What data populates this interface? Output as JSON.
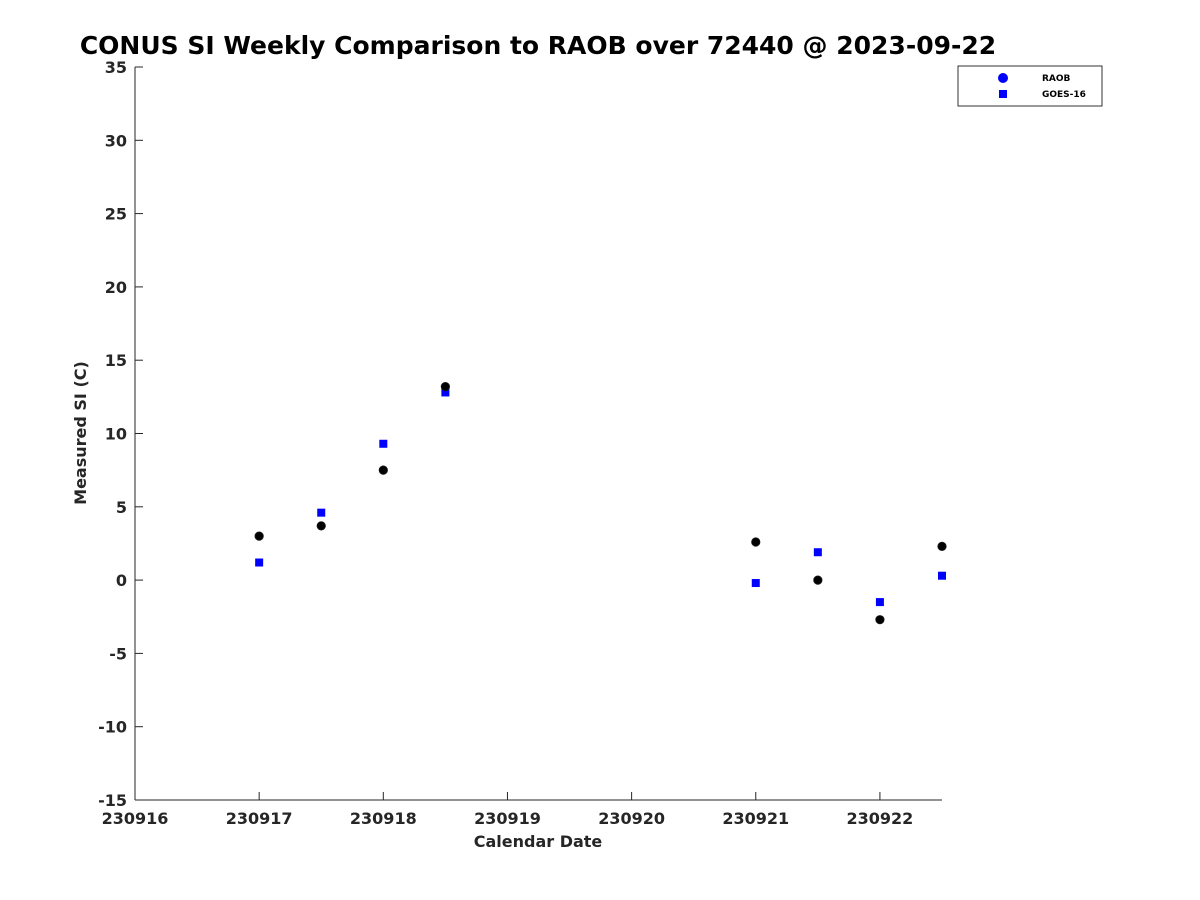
{
  "chart_data": {
    "type": "scatter",
    "title": "CONUS SI Weekly Comparison to RAOB over 72440 @ 2023-09-22",
    "xlabel": "Calendar Date",
    "ylabel": "Measured SI (C)",
    "xlim": [
      230916,
      230922.5
    ],
    "ylim": [
      -15,
      35
    ],
    "x_ticks": [
      230916,
      230917,
      230918,
      230919,
      230920,
      230921,
      230922
    ],
    "x_tick_labels": [
      "230916",
      "230917",
      "230918",
      "230919",
      "230920",
      "230921",
      "230922"
    ],
    "y_ticks": [
      -15,
      -10,
      -5,
      0,
      5,
      10,
      15,
      20,
      25,
      30,
      35
    ],
    "y_tick_labels": [
      "-15",
      "-10",
      "-5",
      "0",
      "5",
      "10",
      "15",
      "20",
      "25",
      "30",
      "35"
    ],
    "grid": false,
    "legend_position": "top-right",
    "series": [
      {
        "name": "RAOB",
        "marker": "circle",
        "color": "#000000",
        "legend_color": "#0000ff",
        "x": [
          230917,
          230917.5,
          230918,
          230918.5,
          230921,
          230921.5,
          230922,
          230922.5
        ],
        "y": [
          3.0,
          3.7,
          7.5,
          13.2,
          2.6,
          0.0,
          -2.7,
          2.3
        ]
      },
      {
        "name": "GOES-16",
        "marker": "square",
        "color": "#0000ff",
        "legend_color": "#0000ff",
        "x": [
          230917,
          230917.5,
          230918,
          230918.5,
          230921,
          230921.5,
          230922,
          230922.5
        ],
        "y": [
          1.2,
          4.6,
          9.3,
          12.8,
          -0.2,
          1.9,
          -1.5,
          0.3
        ]
      }
    ]
  }
}
